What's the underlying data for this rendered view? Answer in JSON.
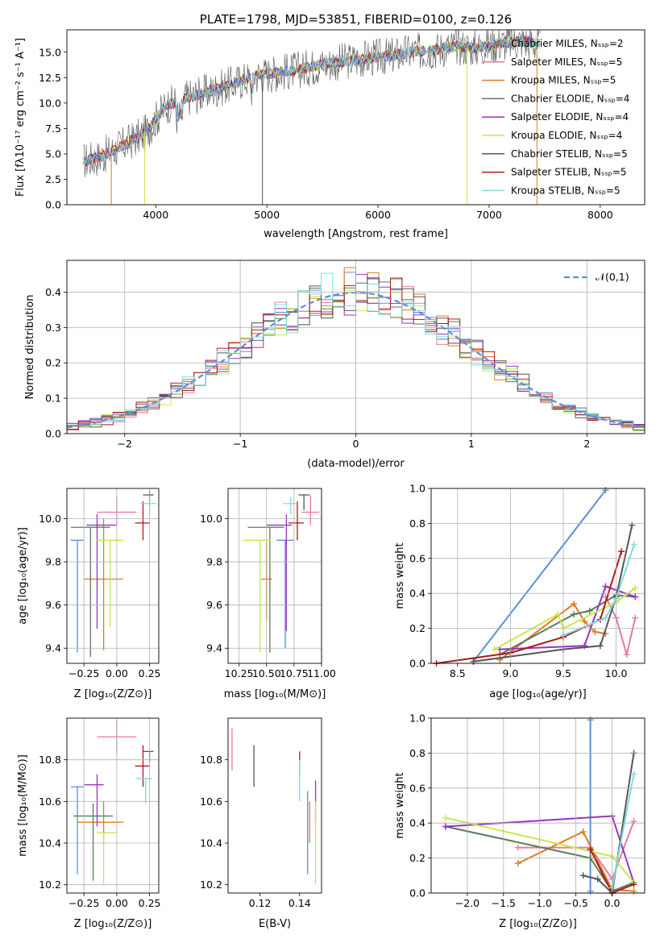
{
  "colors": {
    "Chabrier MILES": "#5b8dd6",
    "Salpeter MILES": "#e8799e",
    "Kroupa MILES": "#e07a22",
    "Chabrier ELODIE": "#5a7a5a",
    "Salpeter ELODIE": "#9a32c0",
    "Kroupa ELODIE": "#c8e84a",
    "Chabrier STELIB": "#555555",
    "Salpeter STELIB": "#b01818",
    "Kroupa STELIB": "#7fdbe0"
  },
  "chart_data": [
    {
      "id": "spectrum",
      "type": "line",
      "title": "PLATE=1798, MJD=53851, FIBERID=0100, z=0.126",
      "xlabel": "wavelength [Angstrom, rest frame]",
      "ylabel": "Flux [fλ10⁻¹⁷ erg cm⁻² s⁻¹ A⁻¹]",
      "xlim": [
        3200,
        8400
      ],
      "ylim": [
        0,
        17.2
      ],
      "xticks": [
        4000,
        5000,
        6000,
        7000,
        8000
      ],
      "yticks": [
        0.0,
        2.5,
        5.0,
        7.5,
        10.0,
        12.5,
        15.0
      ],
      "grid": false,
      "legend_position": "top-right",
      "legend": [
        {
          "label": "Chabrier MILES, N_SSP=2",
          "color": "#5b8dd6"
        },
        {
          "label": "Salpeter MILES, N_SSP=5",
          "color": "#e8799e"
        },
        {
          "label": "Kroupa MILES, N_SSP=5",
          "color": "#e07a22"
        },
        {
          "label": "Chabrier ELODIE, N_SSP=4",
          "color": "#5a7a5a"
        },
        {
          "label": "Salpeter ELODIE, N_SSP=4",
          "color": "#9a32c0"
        },
        {
          "label": "Kroupa ELODIE, N_SSP=4",
          "color": "#c8e84a"
        },
        {
          "label": "Chabrier STELIB, N_SSP=5",
          "color": "#555555"
        },
        {
          "label": "Salpeter STELIB, N_SSP=5",
          "color": "#b01818"
        },
        {
          "label": "Kroupa STELIB, N_SSP=5",
          "color": "#7fdbe0"
        }
      ],
      "data": {
        "x": [
          3350,
          3500,
          3700,
          3900,
          4100,
          4300,
          4500,
          4700,
          4900,
          5100,
          5300,
          5500,
          5700,
          5900,
          6100,
          6300,
          6500,
          6700,
          6900,
          7100,
          7300,
          7450
        ],
        "y": [
          4.3,
          4.7,
          5.8,
          7.0,
          9.8,
          10.6,
          11.2,
          11.9,
          12.7,
          13.0,
          13.3,
          13.8,
          14.1,
          14.4,
          14.6,
          15.0,
          15.2,
          15.6,
          15.4,
          15.9,
          16.1,
          15.8
        ]
      }
    },
    {
      "id": "residuals",
      "type": "histogram",
      "xlabel": "(data-model)/error",
      "ylabel": "Normed distribution",
      "xlim": [
        -2.5,
        2.5
      ],
      "ylim": [
        0,
        0.49
      ],
      "xticks": [
        -2,
        -1,
        0,
        1,
        2
      ],
      "yticks": [
        0.0,
        0.1,
        0.2,
        0.3,
        0.4
      ],
      "grid": true,
      "legend_position": "top-right",
      "reference_curve": {
        "label": "𝒩(0,1)",
        "style": "dashed",
        "color": "#5b8dd6"
      },
      "bin_width": 0.1
    },
    {
      "id": "age-vs-Z",
      "type": "errorbar",
      "xlabel": "Z [log₁₀(Z/Z⊙)]",
      "ylabel": "age  [log₁₀(age/yr)]",
      "xlim": [
        -0.38,
        0.32
      ],
      "ylim": [
        9.33,
        10.14
      ],
      "xticks": [
        -0.25,
        0.0,
        0.25
      ],
      "yticks": [
        9.4,
        9.6,
        9.8,
        10.0
      ],
      "grid": true,
      "points": [
        {
          "model": "Chabrier MILES",
          "x": -0.3,
          "y": 9.9,
          "xerr": [
            0.05,
            0.05
          ],
          "yerr": [
            0.52,
            0.0
          ]
        },
        {
          "model": "Salpeter MILES",
          "x": 0.0,
          "y": 10.03,
          "xerr": [
            0.15,
            0.15
          ],
          "yerr": [
            0.06,
            0.07
          ]
        },
        {
          "model": "Kroupa MILES",
          "x": -0.1,
          "y": 9.72,
          "xerr": [
            0.15,
            0.15
          ],
          "yerr": [
            0.33,
            0.28
          ]
        },
        {
          "model": "Chabrier ELODIE",
          "x": -0.2,
          "y": 9.96,
          "xerr": [
            0.15,
            0.15
          ],
          "yerr": [
            0.6,
            0.0
          ]
        },
        {
          "model": "Salpeter ELODIE",
          "x": -0.15,
          "y": 9.97,
          "xerr": [
            0.08,
            0.15
          ],
          "yerr": [
            0.48,
            0.05
          ]
        },
        {
          "model": "Kroupa ELODIE",
          "x": -0.05,
          "y": 9.9,
          "xerr": [
            0.1,
            0.1
          ],
          "yerr": [
            0.4,
            0.0
          ]
        },
        {
          "model": "Chabrier STELIB",
          "x": 0.25,
          "y": 10.11,
          "xerr": [
            0.05,
            0.03
          ],
          "yerr": [
            0.05,
            0.02
          ]
        },
        {
          "model": "Salpeter STELIB",
          "x": 0.2,
          "y": 9.98,
          "xerr": [
            0.06,
            0.05
          ],
          "yerr": [
            0.08,
            0.1
          ]
        },
        {
          "model": "Kroupa STELIB",
          "x": 0.25,
          "y": 10.07,
          "xerr": [
            0.07,
            0.05
          ],
          "yerr": [
            0.05,
            0.03
          ]
        }
      ]
    },
    {
      "id": "age-vs-mass",
      "type": "errorbar",
      "xlabel": "mass [log₁₀(M/M⊙)]",
      "ylabel": "",
      "xlim": [
        10.15,
        11.0
      ],
      "ylim": [
        9.33,
        10.14
      ],
      "xticks": [
        10.25,
        10.5,
        10.75,
        11.0
      ],
      "xtick_labels": [
        "10.25",
        "10.50",
        "10.75",
        "11.00"
      ],
      "yticks": [
        9.4,
        9.6,
        9.8,
        10.0
      ],
      "grid": true,
      "points": [
        {
          "model": "Chabrier MILES",
          "x": 10.67,
          "y": 9.9,
          "xerr": [
            0.08,
            0.08
          ],
          "yerr": [
            0.5,
            0.0
          ]
        },
        {
          "model": "Salpeter MILES",
          "x": 10.9,
          "y": 10.03,
          "xerr": [
            0.08,
            0.08
          ],
          "yerr": [
            0.06,
            0.08
          ]
        },
        {
          "model": "Kroupa MILES",
          "x": 10.5,
          "y": 9.72,
          "xerr": [
            0.05,
            0.05
          ],
          "yerr": [
            0.19,
            0.17
          ]
        },
        {
          "model": "Chabrier ELODIE",
          "x": 10.53,
          "y": 9.96,
          "xerr": [
            0.2,
            0.13
          ],
          "yerr": [
            0.58,
            0.0
          ]
        },
        {
          "model": "Salpeter ELODIE",
          "x": 10.68,
          "y": 9.97,
          "xerr": [
            0.18,
            0.05
          ],
          "yerr": [
            0.49,
            0.05
          ]
        },
        {
          "model": "Kroupa ELODIE",
          "x": 10.44,
          "y": 9.9,
          "xerr": [
            0.15,
            0.1
          ],
          "yerr": [
            0.52,
            0.0
          ]
        },
        {
          "model": "Chabrier STELIB",
          "x": 10.84,
          "y": 10.11,
          "xerr": [
            0.05,
            0.05
          ],
          "yerr": [
            0.07,
            0.0
          ]
        },
        {
          "model": "Salpeter STELIB",
          "x": 10.78,
          "y": 9.98,
          "xerr": [
            0.08,
            0.06
          ],
          "yerr": [
            0.08,
            0.1
          ]
        },
        {
          "model": "Kroupa STELIB",
          "x": 10.72,
          "y": 10.07,
          "xerr": [
            0.07,
            0.05
          ],
          "yerr": [
            0.05,
            0.03
          ]
        }
      ]
    },
    {
      "id": "massweight-vs-age",
      "type": "line",
      "xlabel": "age  [log₁₀(age/yr)]",
      "ylabel": "mass weight",
      "xlim": [
        8.25,
        10.27
      ],
      "ylim": [
        0,
        1.0
      ],
      "xticks": [
        8.5,
        9.0,
        9.5,
        10.0
      ],
      "yticks": [
        0.0,
        0.2,
        0.4,
        0.6,
        0.8,
        1.0
      ],
      "grid": true,
      "series": [
        {
          "model": "Chabrier MILES",
          "x": [
            8.65,
            9.9
          ],
          "y": [
            0.01,
            0.99
          ]
        },
        {
          "model": "Salpeter MILES",
          "x": [
            9.9,
            10.0,
            10.1,
            10.18
          ],
          "y": [
            0.38,
            0.26,
            0.05,
            0.26
          ]
        },
        {
          "model": "Kroupa MILES",
          "x": [
            8.9,
            9.6,
            9.7,
            9.8,
            9.9
          ],
          "y": [
            0.02,
            0.34,
            0.24,
            0.18,
            0.17
          ]
        },
        {
          "model": "Chabrier ELODIE",
          "x": [
            8.9,
            9.6,
            9.75,
            10.0,
            10.18
          ],
          "y": [
            0.05,
            0.28,
            0.3,
            0.39,
            0.38
          ]
        },
        {
          "model": "Salpeter ELODIE",
          "x": [
            8.9,
            9.7,
            9.9,
            10.18
          ],
          "y": [
            0.08,
            0.1,
            0.44,
            0.38
          ]
        },
        {
          "model": "Kroupa ELODIE",
          "x": [
            8.85,
            9.45,
            9.5,
            10.0,
            10.18
          ],
          "y": [
            0.08,
            0.28,
            0.2,
            0.35,
            0.43
          ]
        },
        {
          "model": "Chabrier STELIB",
          "x": [
            8.65,
            9.5,
            9.85,
            10.0,
            10.15
          ],
          "y": [
            0.01,
            0.08,
            0.1,
            0.38,
            0.79
          ]
        },
        {
          "model": "Salpeter STELIB",
          "x": [
            8.3,
            9.0,
            9.5,
            9.85,
            10.05
          ],
          "y": [
            0.0,
            0.06,
            0.15,
            0.25,
            0.64
          ]
        },
        {
          "model": "Kroupa STELIB",
          "x": [
            9.5,
            9.9,
            10.0,
            10.17
          ],
          "y": [
            0.16,
            0.26,
            0.37,
            0.68
          ]
        }
      ]
    },
    {
      "id": "mass-vs-Z",
      "type": "errorbar",
      "xlabel": "Z [log₁₀(Z/Z⊙)]",
      "ylabel": "mass [log₁₀(M/M⊙)]",
      "xlim": [
        -0.38,
        0.32
      ],
      "ylim": [
        10.16,
        11.0
      ],
      "xticks": [
        -0.25,
        0.0,
        0.25
      ],
      "yticks": [
        10.2,
        10.4,
        10.6,
        10.8
      ],
      "grid": true,
      "points": [
        {
          "model": "Chabrier MILES",
          "x": -0.3,
          "y": 10.67,
          "xerr": [
            0.05,
            0.05
          ],
          "yerr": [
            0.42,
            0.0
          ]
        },
        {
          "model": "Salpeter MILES",
          "x": 0.0,
          "y": 10.91,
          "xerr": [
            0.15,
            0.15
          ],
          "yerr": [
            0.08,
            0.08
          ]
        },
        {
          "model": "Kroupa MILES",
          "x": -0.1,
          "y": 10.5,
          "xerr": [
            0.2,
            0.15
          ],
          "yerr": [
            0.1,
            0.1
          ]
        },
        {
          "model": "Chabrier ELODIE",
          "x": -0.18,
          "y": 10.53,
          "xerr": [
            0.15,
            0.15
          ],
          "yerr": [
            0.31,
            0.06
          ]
        },
        {
          "model": "Salpeter ELODIE",
          "x": -0.15,
          "y": 10.68,
          "xerr": [
            0.1,
            0.05
          ],
          "yerr": [
            0.2,
            0.05
          ]
        },
        {
          "model": "Kroupa ELODIE",
          "x": -0.1,
          "y": 10.45,
          "xerr": [
            0.05,
            0.1
          ],
          "yerr": [
            0.25,
            0.0
          ]
        },
        {
          "model": "Chabrier STELIB",
          "x": 0.25,
          "y": 10.84,
          "xerr": [
            0.05,
            0.03
          ],
          "yerr": [
            0.05,
            0.0
          ]
        },
        {
          "model": "Salpeter STELIB",
          "x": 0.2,
          "y": 10.77,
          "xerr": [
            0.06,
            0.05
          ],
          "yerr": [
            0.1,
            0.1
          ]
        },
        {
          "model": "Kroupa STELIB",
          "x": 0.22,
          "y": 10.71,
          "xerr": [
            0.07,
            0.05
          ],
          "yerr": [
            0.12,
            0.0
          ]
        }
      ]
    },
    {
      "id": "mass-vs-EBV",
      "type": "errorbar",
      "xlabel": "E(B-V)",
      "ylabel": "",
      "xlim": [
        0.104,
        0.151
      ],
      "ylim": [
        10.16,
        11.0
      ],
      "xticks": [
        0.12,
        0.14
      ],
      "xtick_labels": [
        "0.12",
        "0.14"
      ],
      "yticks": [
        10.2,
        10.4,
        10.6,
        10.8
      ],
      "grid": false,
      "points": [
        {
          "model": "Salpeter MILES",
          "x": 0.106,
          "y": 10.85,
          "yerr": [
            0.1,
            0.1
          ]
        },
        {
          "model": "Chabrier STELIB",
          "x": 0.117,
          "y": 10.77,
          "yerr": [
            0.1,
            0.1
          ]
        },
        {
          "model": "Salpeter STELIB",
          "x": 0.14,
          "y": 10.78,
          "yerr": [
            0.06,
            0.06
          ]
        },
        {
          "model": "Kroupa STELIB",
          "x": 0.14,
          "y": 10.7,
          "yerr": [
            0.1,
            0.1
          ]
        },
        {
          "model": "Chabrier MILES",
          "x": 0.144,
          "y": 10.45,
          "yerr": [
            0.2,
            0.2
          ]
        },
        {
          "model": "Kroupa MILES",
          "x": 0.145,
          "y": 10.5,
          "yerr": [
            0.1,
            0.1
          ]
        },
        {
          "model": "Salpeter ELODIE",
          "x": 0.148,
          "y": 10.6,
          "yerr": [
            0.1,
            0.1
          ]
        },
        {
          "model": "Kroupa ELODIE",
          "x": 0.148,
          "y": 10.4,
          "yerr": [
            0.2,
            0.2
          ]
        }
      ]
    },
    {
      "id": "massweight-vs-Z",
      "type": "line",
      "xlabel": "Z [log₁₀(Z/Z⊙)]",
      "ylabel": "mass weight",
      "xlim": [
        -2.5,
        0.45
      ],
      "ylim": [
        0,
        1.0
      ],
      "xticks": [
        -2.0,
        -1.5,
        -1.0,
        -0.5,
        0.0
      ],
      "yticks": [
        0.0,
        0.2,
        0.4,
        0.6,
        0.8,
        1.0
      ],
      "grid": true,
      "series": [
        {
          "model": "Chabrier MILES",
          "x": [
            -0.3,
            -0.3
          ],
          "y": [
            0.99,
            0.01
          ]
        },
        {
          "model": "Salpeter MILES",
          "x": [
            -1.3,
            -0.3,
            0.0,
            0.3
          ],
          "y": [
            0.26,
            0.26,
            0.08,
            0.41
          ]
        },
        {
          "model": "Kroupa MILES",
          "x": [
            -1.3,
            -0.4,
            0.0,
            0.3
          ],
          "y": [
            0.17,
            0.35,
            0.02,
            0.01
          ]
        },
        {
          "model": "Chabrier ELODIE",
          "x": [
            -2.3,
            -0.3,
            0.0,
            0.3
          ],
          "y": [
            0.38,
            0.2,
            0.01,
            0.06
          ]
        },
        {
          "model": "Salpeter ELODIE",
          "x": [
            -2.3,
            0.0,
            0.3
          ],
          "y": [
            0.38,
            0.44,
            0.06
          ]
        },
        {
          "model": "Kroupa ELODIE",
          "x": [
            -2.3,
            0.0,
            0.3
          ],
          "y": [
            0.43,
            0.21,
            0.06
          ]
        },
        {
          "model": "Chabrier STELIB",
          "x": [
            -0.4,
            -0.2,
            0.0,
            0.3
          ],
          "y": [
            0.1,
            0.08,
            0.0,
            0.8
          ]
        },
        {
          "model": "Salpeter STELIB",
          "x": [
            -0.3,
            0.0,
            0.3
          ],
          "y": [
            0.25,
            0.0,
            0.05
          ]
        },
        {
          "model": "Kroupa STELIB",
          "x": [
            0.0,
            0.3
          ],
          "y": [
            0.03,
            0.68
          ]
        }
      ]
    }
  ]
}
